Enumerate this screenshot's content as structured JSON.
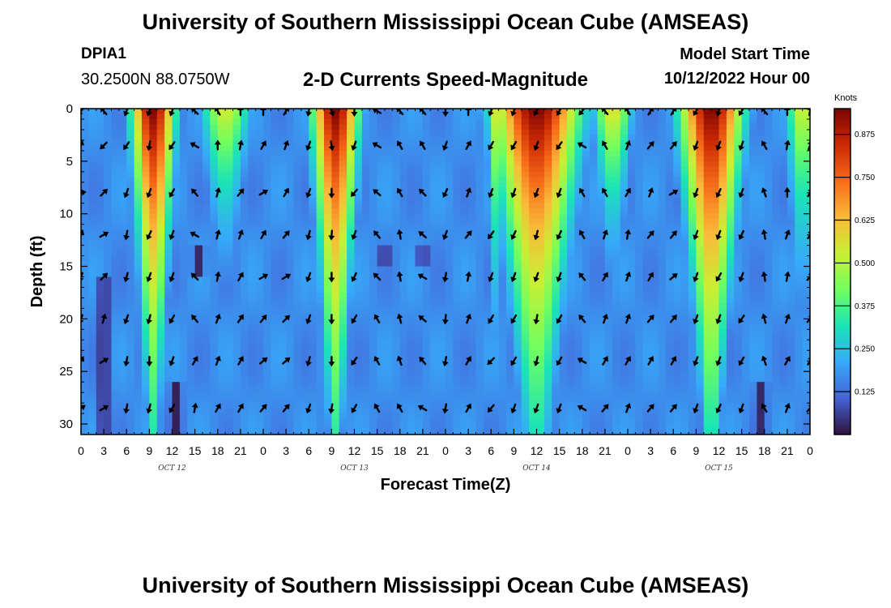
{
  "header": {
    "title": "University of Southern Mississippi Ocean Cube (AMSEAS)",
    "station": "DPIA1",
    "coordinates": "30.2500N  88.0750W",
    "subtitle": "2-D Currents Speed-Magnitude",
    "model_start_label": "Model Start Time",
    "model_start_value": "10/12/2022 Hour 00"
  },
  "footer": {
    "title": "University of Southern Mississippi Ocean Cube (AMSEAS)"
  },
  "chart_data": {
    "type": "heatmap",
    "title": "2-D Currents Speed-Magnitude",
    "xlabel": "Forecast Time(Z)",
    "ylabel": "Depth (ft)",
    "x_tick_labels": [
      "0",
      "3",
      "6",
      "9",
      "12",
      "15",
      "18",
      "21",
      "0",
      "3",
      "6",
      "9",
      "12",
      "15",
      "18",
      "21",
      "0",
      "3",
      "6",
      "9",
      "12",
      "15",
      "18",
      "21",
      "0",
      "3",
      "6",
      "9",
      "12",
      "15",
      "18",
      "21",
      "0"
    ],
    "x_range_hours": [
      0,
      96
    ],
    "day_labels": [
      {
        "label": "OCT 12",
        "center_hour": 12
      },
      {
        "label": "OCT 13",
        "center_hour": 36
      },
      {
        "label": "OCT 14",
        "center_hour": 60
      },
      {
        "label": "OCT 15",
        "center_hour": 84
      }
    ],
    "y_ticks": [
      0,
      5,
      10,
      15,
      20,
      25,
      30
    ],
    "y_range": [
      0,
      31
    ],
    "y_inverted": true,
    "colorbar": {
      "title": "Knots",
      "range": [
        0,
        0.95
      ],
      "tick_values": [
        0.125,
        0.25,
        0.375,
        0.5,
        0.625,
        0.75,
        0.875
      ],
      "tick_labels": [
        "0.125",
        "0.250",
        "0.375",
        "0.500",
        "0.625",
        "0.750",
        "0.875"
      ],
      "colors": [
        "#30123b",
        "#4662d7",
        "#36aaf9",
        "#1ae4b6",
        "#72fe5e",
        "#c8ef34",
        "#faba39",
        "#f66b19",
        "#cb2a04",
        "#7a0403"
      ]
    },
    "speed_model": {
      "time_step_hours": 1,
      "depth_step_ft": 0.5,
      "peaks": [
        {
          "center_hour": 9.5,
          "surface_speed": 0.95,
          "surface_half_width_h": 2.6,
          "bottom_half_width_h": 0.9,
          "decay_depth_ft": 26
        },
        {
          "center_hour": 33.5,
          "surface_speed": 0.95,
          "surface_half_width_h": 2.8,
          "bottom_half_width_h": 1.0,
          "decay_depth_ft": 27
        },
        {
          "center_hour": 54.5,
          "surface_speed": 0.55,
          "surface_half_width_h": 1.0,
          "bottom_half_width_h": 0.6,
          "decay_depth_ft": 18
        },
        {
          "center_hour": 60.0,
          "surface_speed": 0.95,
          "surface_half_width_h": 5.2,
          "bottom_half_width_h": 2.0,
          "decay_depth_ft": 26
        },
        {
          "center_hour": 83.0,
          "surface_speed": 0.95,
          "surface_half_width_h": 3.8,
          "bottom_half_width_h": 1.2,
          "decay_depth_ft": 28
        },
        {
          "center_hour": 19.0,
          "surface_speed": 0.55,
          "surface_half_width_h": 3.0,
          "bottom_half_width_h": 1.0,
          "decay_depth_ft": 12
        },
        {
          "center_hour": 70.0,
          "surface_speed": 0.58,
          "surface_half_width_h": 2.4,
          "bottom_half_width_h": 1.0,
          "decay_depth_ft": 12
        },
        {
          "center_hour": 95.0,
          "surface_speed": 0.55,
          "surface_half_width_h": 2.0,
          "bottom_half_width_h": 1.2,
          "decay_depth_ft": 15
        }
      ],
      "minima": [
        {
          "center_hour": 3.0,
          "depth_from_ft": 16,
          "value": 0.01
        },
        {
          "center_hour": 12.5,
          "depth_from_ft": 26,
          "value": 0.02
        },
        {
          "center_hour": 15.5,
          "depth_from_ft": 13,
          "depth_to_ft": 16,
          "value": 0.03
        },
        {
          "center_hour": 40.0,
          "depth_from_ft": 13,
          "depth_to_ft": 15,
          "value": 0.03
        },
        {
          "center_hour": 45.0,
          "depth_from_ft": 13,
          "depth_to_ft": 15,
          "value": 0.03
        },
        {
          "center_hour": 89.5,
          "depth_from_ft": 26,
          "value": 0.03
        }
      ]
    },
    "vector_depths_ft": [
      0,
      3.5,
      8,
      12,
      16,
      20,
      24,
      28.5
    ],
    "vector_time_step_hours": 3,
    "vector_directions_deg": [
      [
        220,
        15,
        80,
        20,
        200,
        200,
        30,
        55
      ],
      [
        320,
        225,
        45,
        60,
        45,
        15,
        60,
        60
      ],
      [
        200,
        215,
        200,
        190,
        195,
        200,
        190,
        190
      ],
      [
        200,
        190,
        200,
        205,
        200,
        195,
        180,
        195
      ],
      [
        200,
        215,
        210,
        200,
        200,
        210,
        200,
        210
      ],
      [
        315,
        300,
        320,
        300,
        315,
        320,
        30,
        10
      ],
      [
        330,
        0,
        15,
        15,
        10,
        20,
        20,
        30
      ],
      [
        0,
        10,
        40,
        20,
        30,
        35,
        30,
        30
      ],
      [
        0,
        30,
        60,
        30,
        60,
        40,
        50,
        40
      ],
      [
        30,
        20,
        30,
        40,
        60,
        45,
        50,
        40
      ],
      [
        190,
        200,
        200,
        195,
        200,
        200,
        195,
        200
      ],
      [
        160,
        170,
        180,
        185,
        180,
        180,
        180,
        190
      ],
      [
        180,
        200,
        220,
        200,
        205,
        210,
        215,
        210
      ],
      [
        300,
        300,
        310,
        320,
        315,
        330,
        330,
        330
      ],
      [
        320,
        330,
        330,
        350,
        350,
        345,
        340,
        330
      ],
      [
        320,
        330,
        315,
        310,
        300,
        310,
        320,
        300
      ],
      [
        180,
        200,
        205,
        200,
        190,
        185,
        190,
        190
      ],
      [
        0,
        30,
        20,
        40,
        10,
        20,
        30,
        30
      ],
      [
        200,
        210,
        200,
        215,
        200,
        210,
        225,
        220
      ],
      [
        200,
        210,
        200,
        205,
        200,
        210,
        210,
        200
      ],
      [
        210,
        200,
        200,
        195,
        200,
        190,
        195,
        200
      ],
      [
        210,
        215,
        200,
        205,
        200,
        210,
        210,
        200
      ],
      [
        220,
        300,
        330,
        330,
        320,
        320,
        300,
        300
      ],
      [
        320,
        330,
        330,
        20,
        30,
        20,
        30,
        40
      ],
      [
        330,
        20,
        30,
        10,
        20,
        20,
        30,
        20
      ],
      [
        30,
        40,
        20,
        40,
        30,
        40,
        30,
        40
      ],
      [
        30,
        40,
        60,
        40,
        50,
        40,
        30,
        40
      ],
      [
        210,
        200,
        200,
        200,
        200,
        200,
        200,
        200
      ],
      [
        195,
        200,
        205,
        200,
        210,
        200,
        200,
        205
      ],
      [
        210,
        200,
        200,
        205,
        200,
        215,
        210,
        200
      ],
      [
        320,
        330,
        340,
        350,
        350,
        345,
        340,
        330
      ],
      [
        0,
        10,
        0,
        20,
        10,
        20,
        30,
        20
      ],
      [
        10,
        20,
        30,
        30,
        40,
        40,
        30,
        40
      ]
    ]
  }
}
